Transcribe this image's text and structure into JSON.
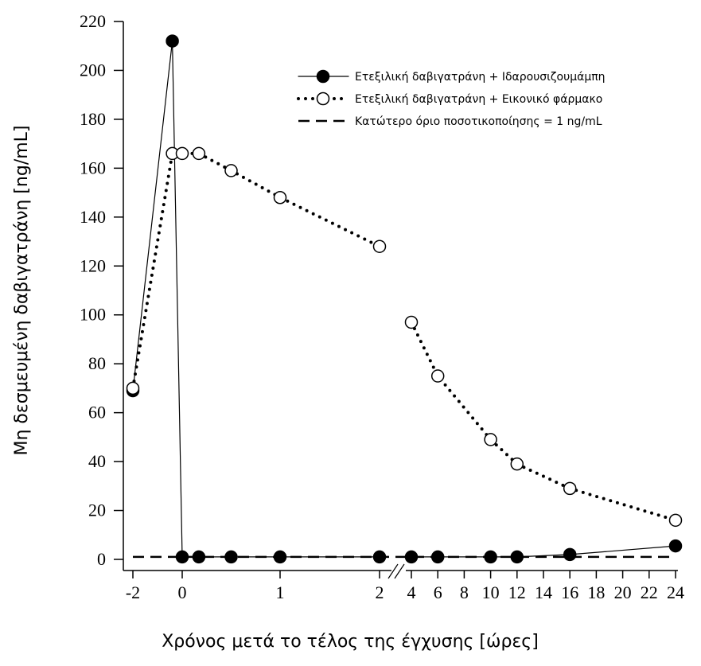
{
  "chart_data": [
    {
      "type": "line",
      "ylabel": "Μη δεσμευμένη δαβιγατράνη [ng/mL]",
      "xlabel": "Χρόνος μετά το τέλος της έγχυσης [ώρες]",
      "ylim": [
        0,
        220
      ],
      "yticks": [
        0,
        20,
        40,
        60,
        80,
        100,
        120,
        140,
        160,
        180,
        200,
        220
      ],
      "xlim": [
        -2,
        2
      ],
      "xticks": [
        -2,
        0,
        1,
        2
      ],
      "legend": "upper right",
      "series": [
        {
          "name": "Ετεξιλική δαβιγατράνη + Ιδαρουσιζουμάμπη",
          "color": "#000000",
          "marker": "filled",
          "line": "solid",
          "x": [
            -2,
            -0.4,
            0,
            0.17,
            0.5,
            1,
            2
          ],
          "values": [
            69,
            212,
            1,
            1,
            1,
            1,
            1
          ]
        },
        {
          "name": "Ετεξιλική δαβιγατράνη + Εικονικό φάρμακο",
          "color": "#000000",
          "marker": "open",
          "line": "dotted",
          "x": [
            -2,
            -0.4,
            0,
            0.17,
            0.5,
            1,
            2
          ],
          "values": [
            70,
            166,
            166,
            166,
            159,
            148,
            128
          ]
        }
      ],
      "reference_line": {
        "name": "Κατώτερο όριο ποσοτικοποίησης = 1 ng/mL",
        "value": 1,
        "line": "dashed",
        "color": "#000000"
      }
    },
    {
      "type": "line",
      "ylim": [
        0,
        220
      ],
      "xlim": [
        4,
        24
      ],
      "xticks": [
        4,
        6,
        8,
        10,
        12,
        14,
        16,
        18,
        20,
        22,
        24
      ],
      "series": [
        {
          "color": "#000000",
          "marker": "filled",
          "line": "solid",
          "x": [
            4,
            6,
            10,
            12,
            16,
            24
          ],
          "values": [
            1,
            1,
            1,
            1,
            2,
            5.5
          ]
        },
        {
          "color": "#000000",
          "marker": "open",
          "line": "dotted",
          "x": [
            4,
            6,
            10,
            12,
            16,
            24
          ],
          "values": [
            97,
            75,
            49,
            39,
            29,
            16
          ]
        }
      ]
    }
  ]
}
